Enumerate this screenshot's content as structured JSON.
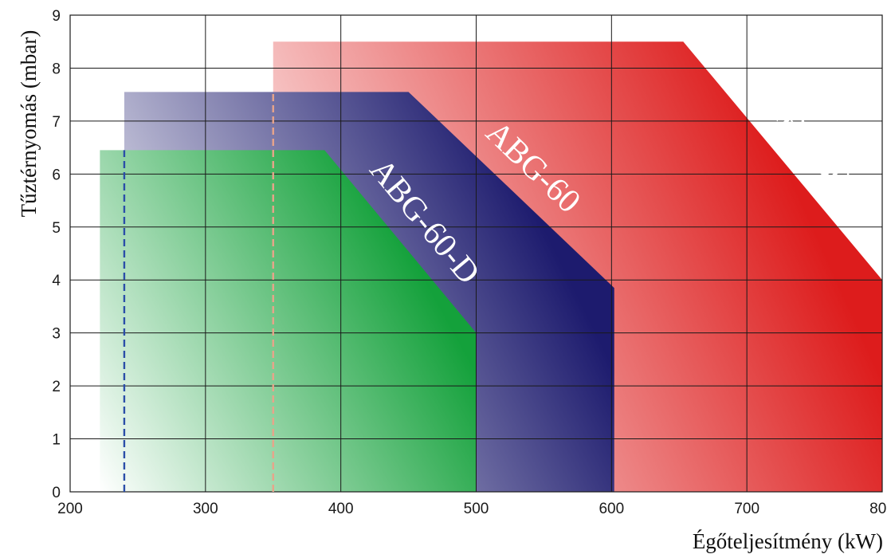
{
  "chart_data": {
    "type": "area",
    "title": "",
    "xlabel": "Égőteljesítmény (kW)",
    "ylabel": "Tűztérnyomás (mbar)",
    "xlim": [
      200,
      800
    ],
    "ylim": [
      0,
      9
    ],
    "x_ticks": [
      200,
      300,
      400,
      500,
      600,
      700,
      800
    ],
    "y_ticks": [
      0,
      1,
      2,
      3,
      4,
      5,
      6,
      7,
      8,
      9
    ],
    "grid": true,
    "series": [
      {
        "name": "ABG-80",
        "color": "#dd1c1c",
        "points": [
          [
            350,
            0
          ],
          [
            350,
            8.5
          ],
          [
            653,
            8.5
          ],
          [
            800,
            4.0
          ],
          [
            800,
            0
          ]
        ],
        "min_line_x": 350,
        "min_line_color": "#e8a48a"
      },
      {
        "name": "ABG-60",
        "color": "#1d1b6e",
        "points": [
          [
            240,
            0
          ],
          [
            240,
            7.55
          ],
          [
            450,
            7.55
          ],
          [
            602,
            3.85
          ],
          [
            602,
            0
          ]
        ],
        "min_line_x": 240,
        "min_line_color": "#2b4ea8"
      },
      {
        "name": "ABG-60-D",
        "color": "#14a13b",
        "points": [
          [
            222,
            0
          ],
          [
            222,
            6.45
          ],
          [
            388,
            6.45
          ],
          [
            500,
            3.0
          ],
          [
            500,
            0
          ]
        ]
      }
    ]
  }
}
